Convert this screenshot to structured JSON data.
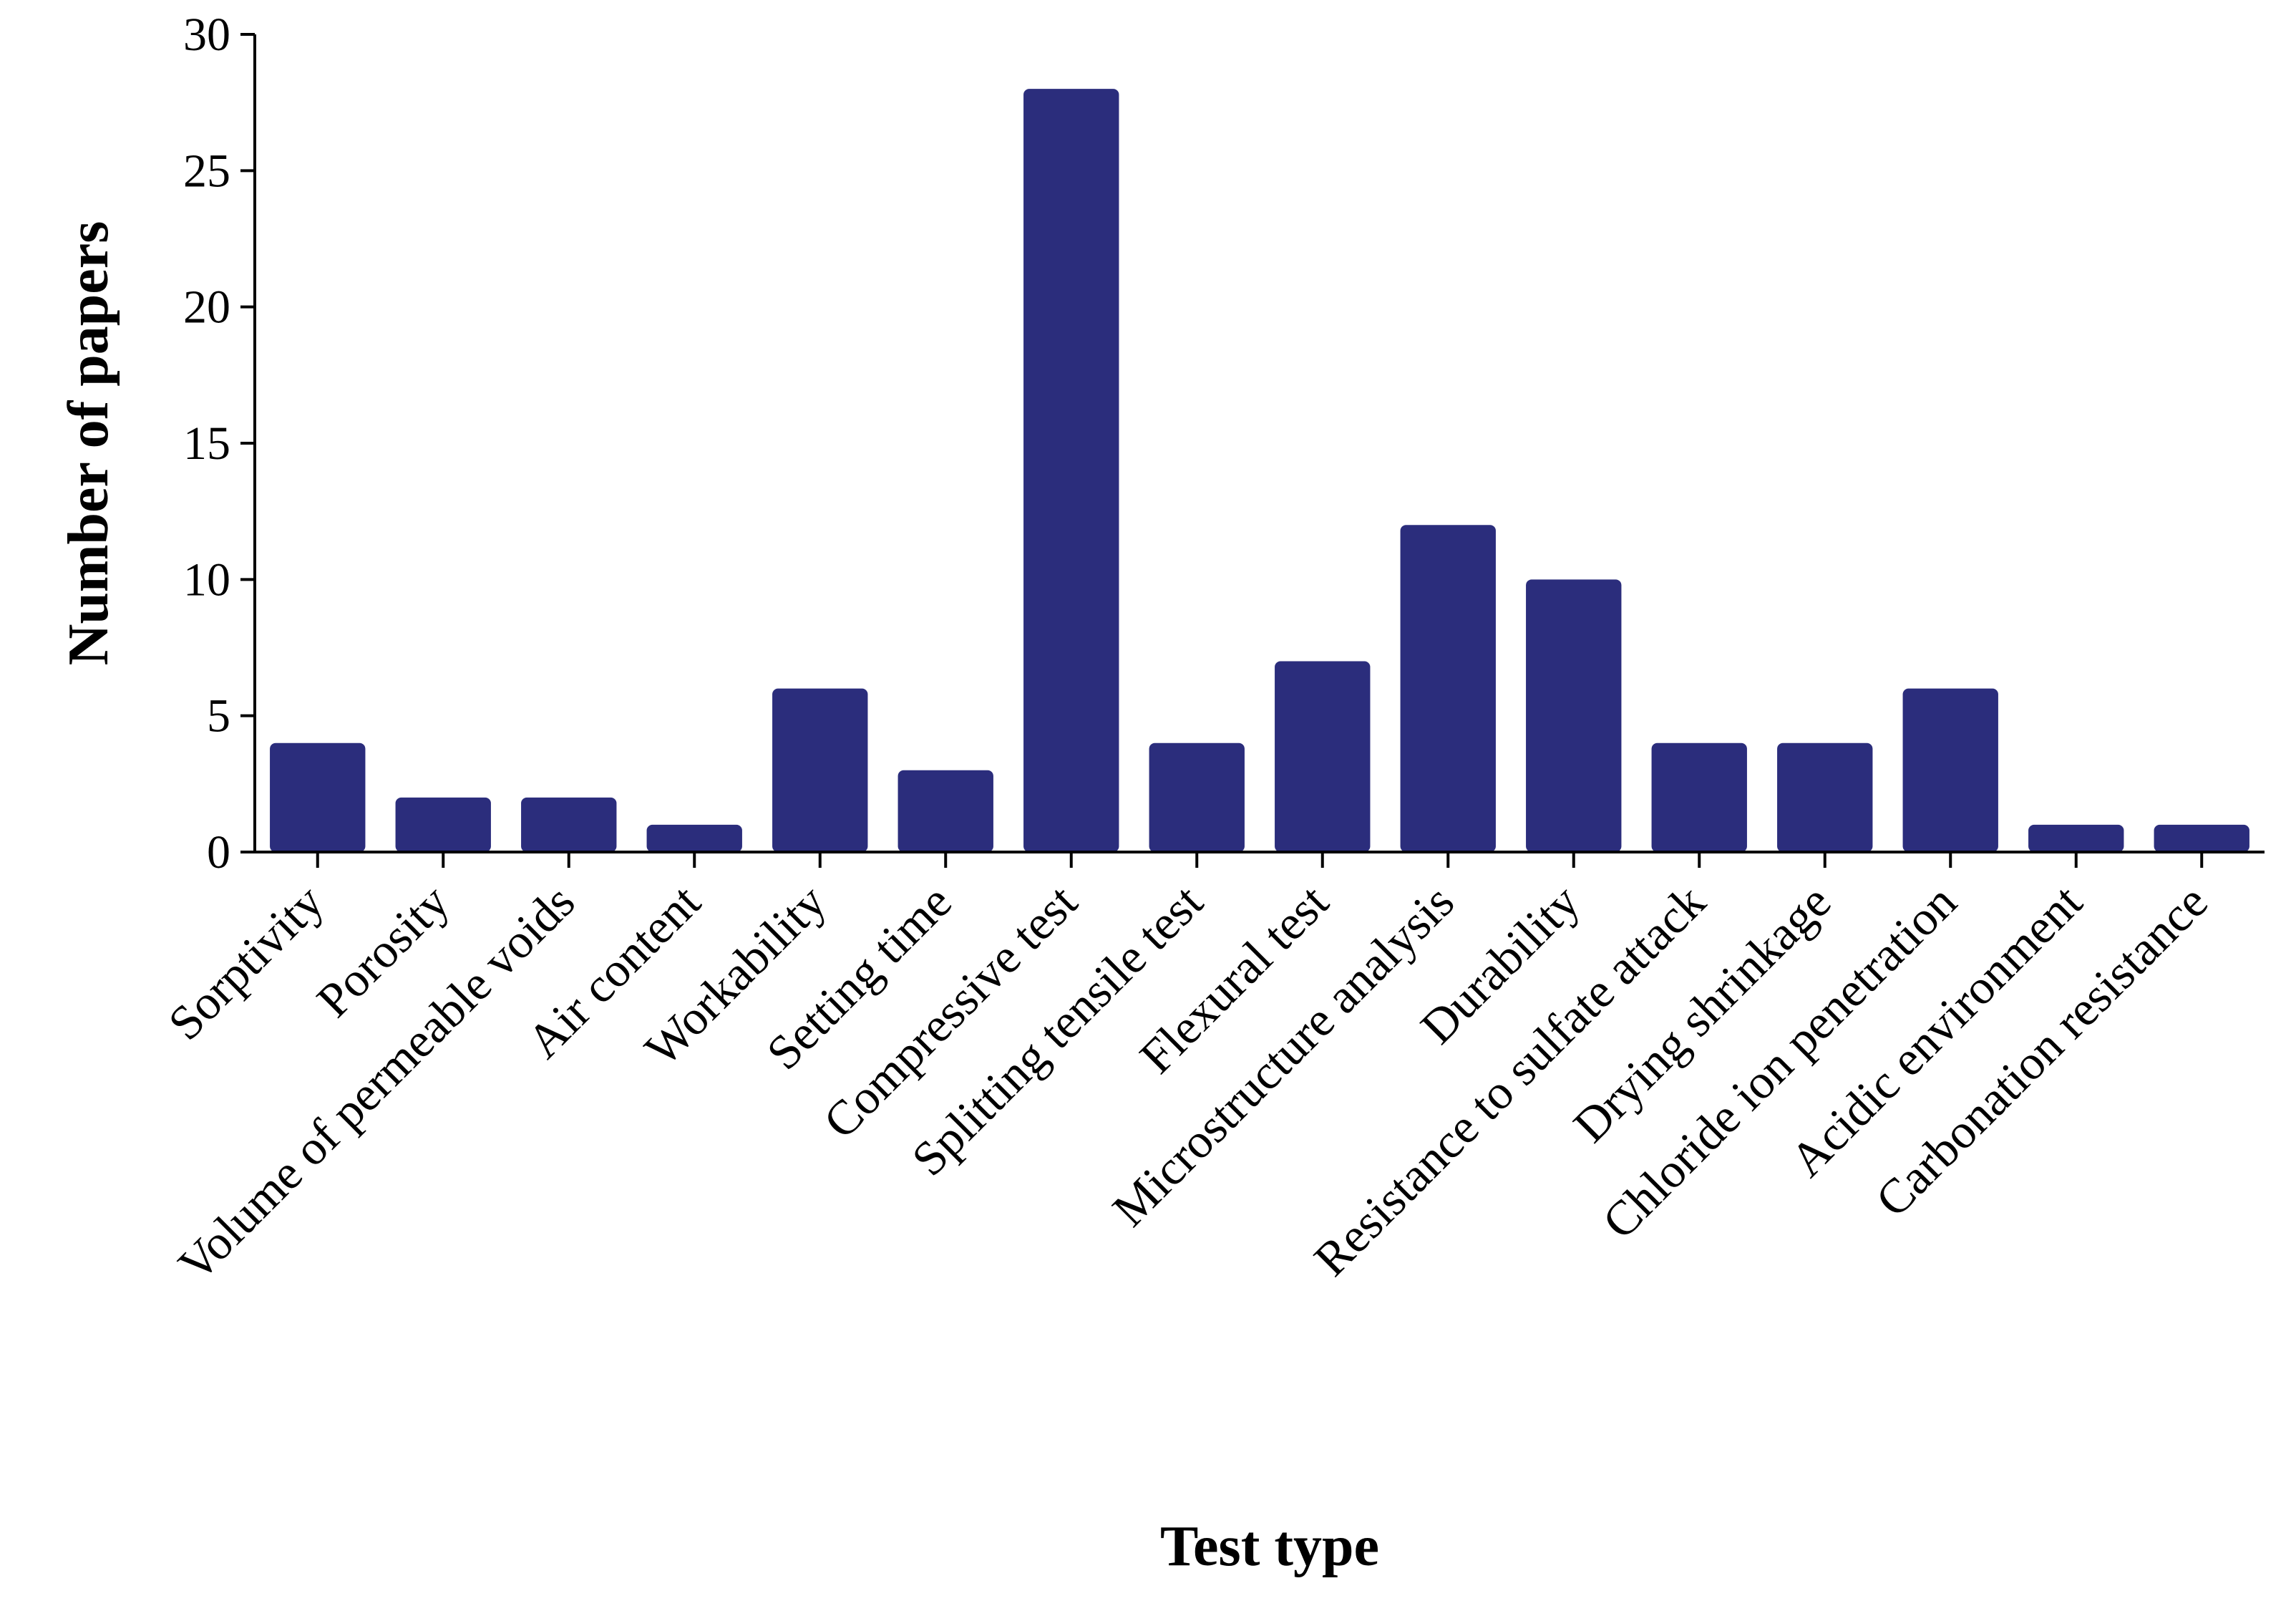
{
  "chart_data": {
    "type": "bar",
    "title": "",
    "xlabel": "Test type",
    "ylabel": "Number of papers",
    "ylim": [
      0,
      30
    ],
    "yticks": [
      0,
      5,
      10,
      15,
      20,
      25,
      30
    ],
    "grid": false,
    "legend": "none",
    "bar_color": "#2b2d7c",
    "categories": [
      "Sorptivity",
      "Porosity",
      "Volume of permeable voids",
      "Air content",
      "Workability",
      "Setting time",
      "Compressive test",
      "Splitting tensile test",
      "Flexural test",
      "Microstructure analysis",
      "Durability",
      "Resistance to sulfate attack",
      "Drying shrinkage",
      "Chloride ion penetration",
      "Acidic environment",
      "Carbonation resistance"
    ],
    "values": [
      4,
      2,
      2,
      1,
      6,
      3,
      28,
      4,
      7,
      12,
      10,
      4,
      4,
      6,
      1,
      1
    ]
  }
}
